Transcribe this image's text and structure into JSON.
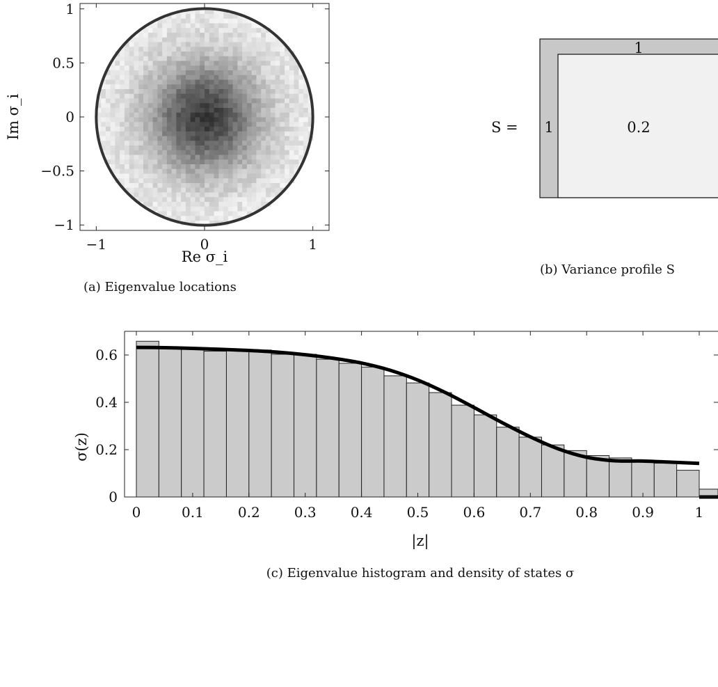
{
  "chart_data": [
    {
      "id": "a",
      "type": "heatmap",
      "caption": "(a) Eigenvalue locations",
      "xlabel": "Re σ_i",
      "ylabel": "Im σ_i",
      "xlim": [
        -1.15,
        1.15
      ],
      "ylim": [
        -1.05,
        1.05
      ],
      "xticks": [
        -1,
        0,
        1
      ],
      "xtick_labels": [
        "−1",
        "0",
        "1"
      ],
      "yticks": [
        -1,
        -0.5,
        0,
        0.5,
        1
      ],
      "ytick_labels": [
        "−1",
        "−0.5",
        "0",
        "0.5",
        "1"
      ],
      "grid": false,
      "circle_radius": 1,
      "density_peak": "center"
    },
    {
      "id": "b",
      "type": "table",
      "caption": "(b) Variance profile S",
      "prefix": "S =",
      "blocks": [
        {
          "label": "1",
          "value": 1
        },
        {
          "label": "1",
          "value": 1
        },
        {
          "label": "0.2",
          "value": 0.2
        }
      ]
    },
    {
      "id": "c",
      "type": "bar",
      "caption": "(c) Eigenvalue histogram and density of states σ",
      "xlabel": "|z|",
      "ylabel": "σ(z)",
      "xlim": [
        -0.02,
        1.05
      ],
      "ylim": [
        0,
        0.7
      ],
      "xticks": [
        0,
        0.1,
        0.2,
        0.3,
        0.4,
        0.5,
        0.6,
        0.7,
        0.8,
        0.9,
        1
      ],
      "xtick_labels": [
        "0",
        "0.1",
        "0.2",
        "0.3",
        "0.4",
        "0.5",
        "0.6",
        "0.7",
        "0.8",
        "0.9",
        "1"
      ],
      "yticks": [
        0,
        0.2,
        0.4,
        0.6
      ],
      "ytick_labels": [
        "0",
        "0.2",
        "0.4",
        "0.6"
      ],
      "grid": false,
      "bin_width": 0.04,
      "bins_start": 0,
      "histogram": [
        0.658,
        0.628,
        0.627,
        0.616,
        0.619,
        0.621,
        0.603,
        0.603,
        0.582,
        0.565,
        0.549,
        0.512,
        0.482,
        0.441,
        0.388,
        0.347,
        0.295,
        0.253,
        0.22,
        0.196,
        0.175,
        0.165,
        0.15,
        0.143,
        0.113,
        0.033
      ],
      "curve_x": [
        0,
        0.05,
        0.1,
        0.15,
        0.2,
        0.25,
        0.3,
        0.35,
        0.4,
        0.45,
        0.5,
        0.55,
        0.6,
        0.65,
        0.7,
        0.75,
        0.8,
        0.85,
        0.9,
        0.95,
        1.0
      ],
      "curve_y": [
        0.632,
        0.631,
        0.628,
        0.624,
        0.619,
        0.612,
        0.601,
        0.586,
        0.566,
        0.536,
        0.494,
        0.44,
        0.378,
        0.314,
        0.254,
        0.203,
        0.168,
        0.153,
        0.152,
        0.147,
        0.142
      ]
    }
  ]
}
